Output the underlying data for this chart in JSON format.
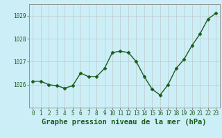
{
  "x": [
    0,
    1,
    2,
    3,
    4,
    5,
    6,
    7,
    8,
    9,
    10,
    11,
    12,
    13,
    14,
    15,
    16,
    17,
    18,
    19,
    20,
    21,
    22,
    23
  ],
  "y": [
    1026.15,
    1026.15,
    1026.0,
    1025.95,
    1025.85,
    1025.95,
    1026.5,
    1026.35,
    1026.35,
    1026.7,
    1027.4,
    1027.45,
    1027.4,
    1027.0,
    1026.35,
    1025.8,
    1025.55,
    1026.0,
    1026.7,
    1027.1,
    1027.7,
    1028.2,
    1028.85,
    1029.1
  ],
  "line_color": "#1a5c1a",
  "marker": "D",
  "marker_size": 2.5,
  "bg_color": "#cceef7",
  "grid_color": "#bbbbbb",
  "xlabel": "Graphe pression niveau de la mer (hPa)",
  "xlabel_fontsize": 7.5,
  "text_color": "#1a5c1a",
  "ylim": [
    1025.0,
    1029.5
  ],
  "yticks": [
    1026,
    1027,
    1028,
    1029
  ],
  "xticks": [
    0,
    1,
    2,
    3,
    4,
    5,
    6,
    7,
    8,
    9,
    10,
    11,
    12,
    13,
    14,
    15,
    16,
    17,
    18,
    19,
    20,
    21,
    22,
    23
  ],
  "tick_fontsize": 5.5,
  "line_width": 1.0
}
